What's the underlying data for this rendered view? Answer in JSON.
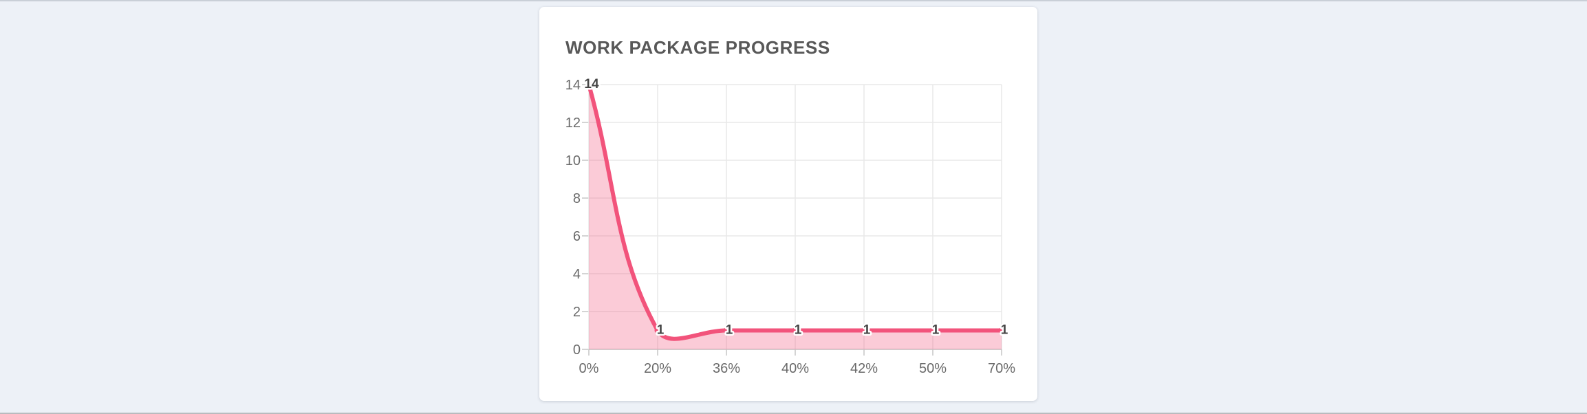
{
  "page": {
    "background_color": "#edf1f7",
    "top_edge_color": "#c9cfd7",
    "bottom_edge_color": "#b9bbbe"
  },
  "card": {
    "title": "WORK PACKAGE PROGRESS",
    "title_color": "#585858",
    "background_color": "#ffffff"
  },
  "chart_data": {
    "type": "area",
    "title": "WORK PACKAGE PROGRESS",
    "categories": [
      "0%",
      "20%",
      "36%",
      "40%",
      "42%",
      "50%",
      "70%"
    ],
    "values": [
      14,
      1,
      1,
      1,
      1,
      1,
      1
    ],
    "data_labels": [
      "14",
      "1",
      "1",
      "1",
      "1",
      "1",
      "1"
    ],
    "xlabel": "",
    "ylabel": "",
    "ylim": [
      0,
      14
    ],
    "y_ticks": [
      0,
      2,
      4,
      6,
      8,
      10,
      12,
      14
    ],
    "grid": true,
    "legend": "none",
    "line_color": "#F2537B",
    "fill_color": "rgba(242,83,123,0.30)",
    "point_color": "#F2537B",
    "data_label_color": "#454545",
    "tick_color": "#6a6a6a",
    "grid_color": "#e9e9e9",
    "axis_color": "#c6c6c6",
    "tension": 0.4
  }
}
